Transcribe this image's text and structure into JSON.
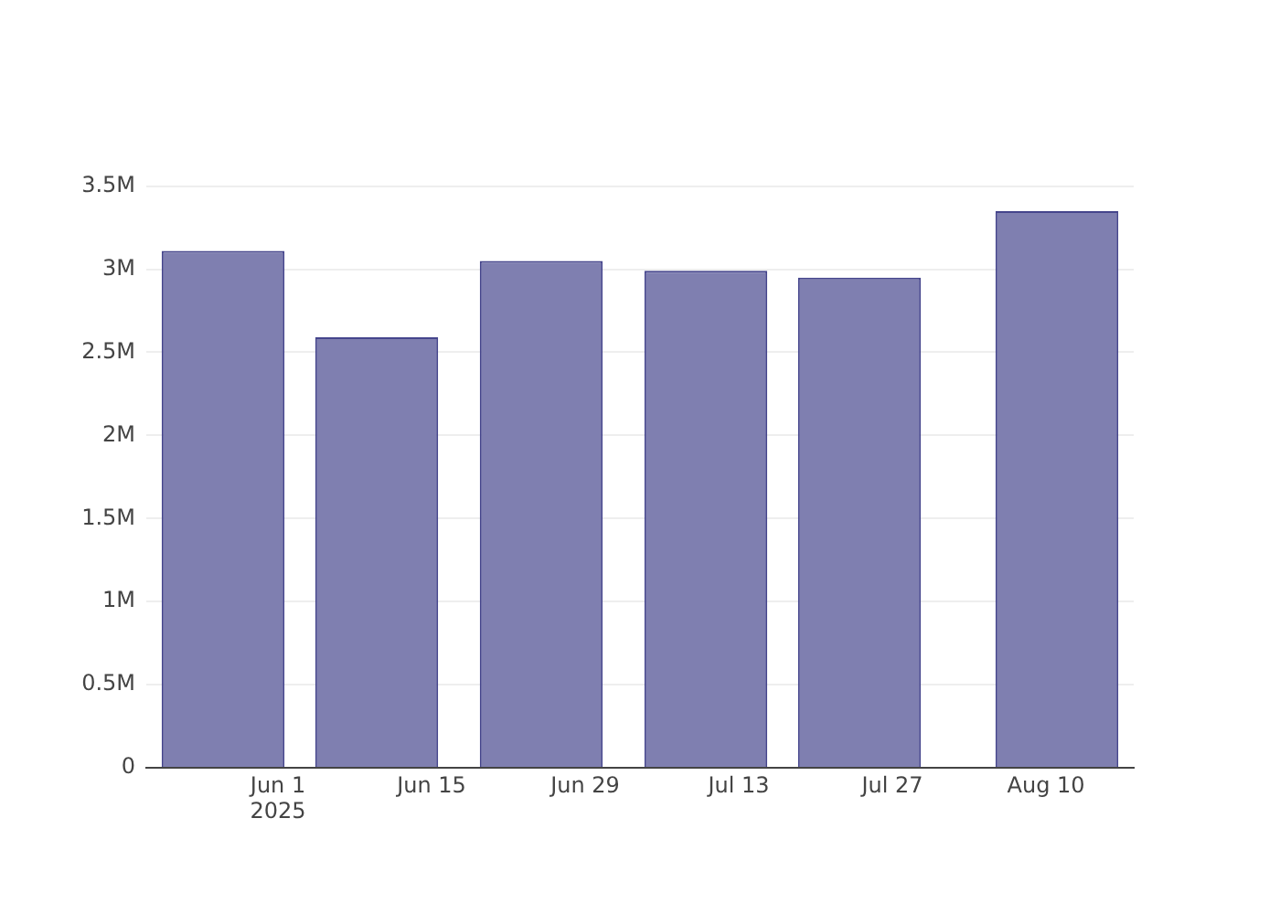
{
  "chart_data": {
    "type": "bar",
    "x": [
      "2025-05-27",
      "2025-06-10",
      "2025-06-25",
      "2025-07-10",
      "2025-07-24",
      "2025-08-11"
    ],
    "values": [
      3110000,
      2590000,
      3050000,
      2990000,
      2950000,
      3350000
    ],
    "color": "#7f7fb0",
    "xlim": [
      "2025-05-20",
      "2025-08-18"
    ],
    "xticks": [
      {
        "value": "2025-06-01",
        "label": "Jun 1\n2025"
      },
      {
        "value": "2025-06-15",
        "label": "Jun 15"
      },
      {
        "value": "2025-06-29",
        "label": "Jun 29"
      },
      {
        "value": "2025-07-13",
        "label": "Jul 13"
      },
      {
        "value": "2025-07-27",
        "label": "Jul 27"
      },
      {
        "value": "2025-08-10",
        "label": "Aug 10"
      }
    ],
    "ylim": [
      0,
      3520000
    ],
    "yticks": [
      0,
      {
        "value": 500000,
        "label": "0.5M"
      },
      {
        "value": 1000000,
        "label": "1M"
      },
      {
        "value": 1500000,
        "label": "1.5M"
      },
      {
        "value": 2000000,
        "label": "2M"
      },
      {
        "value": 2500000,
        "label": "2.5M"
      },
      {
        "value": 3000000,
        "label": "3M"
      },
      {
        "value": 3500000,
        "label": "3.5M"
      }
    ],
    "grid": "y"
  }
}
